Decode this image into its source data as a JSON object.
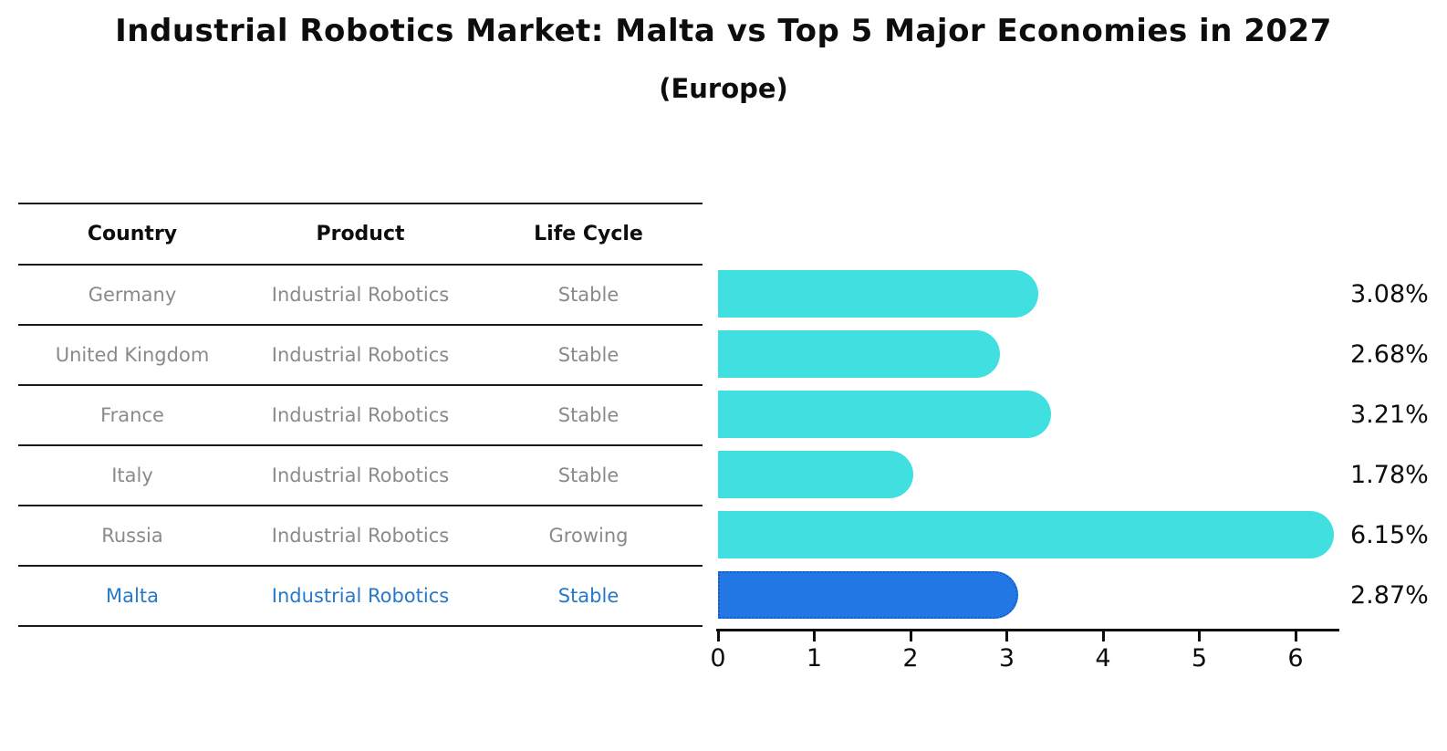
{
  "title": "Industrial Robotics Market: Malta vs Top 5 Major Economies in 2027",
  "subtitle": "(Europe)",
  "table": {
    "headers": [
      "Country",
      "Product",
      "Life Cycle"
    ],
    "rows": [
      {
        "country": "Germany",
        "product": "Industrial Robotics",
        "life_cycle": "Stable",
        "highlight": false
      },
      {
        "country": "United Kingdom",
        "product": "Industrial Robotics",
        "life_cycle": "Stable",
        "highlight": false
      },
      {
        "country": "France",
        "product": "Industrial Robotics",
        "life_cycle": "Stable",
        "highlight": false
      },
      {
        "country": "Italy",
        "product": "Industrial Robotics",
        "life_cycle": "Stable",
        "highlight": false
      },
      {
        "country": "Russia",
        "product": "Industrial Robotics",
        "life_cycle": "Growing",
        "highlight": false
      },
      {
        "country": "Malta",
        "product": "Industrial Robotics",
        "life_cycle": "Stable",
        "highlight": true
      }
    ]
  },
  "chart_data": {
    "type": "bar",
    "orientation": "horizontal",
    "categories": [
      "Germany",
      "United Kingdom",
      "France",
      "Italy",
      "Russia",
      "Malta"
    ],
    "values": [
      3.08,
      2.68,
      3.21,
      1.78,
      6.15,
      2.87
    ],
    "value_labels": [
      "3.08%",
      "2.68%",
      "3.21%",
      "1.78%",
      "6.15%",
      "2.87%"
    ],
    "title": "Industrial Robotics Market: Malta vs Top 5 Major Economies in 2027",
    "subtitle": "(Europe)",
    "xlabel": "",
    "ylabel": "",
    "xlim": [
      0,
      6.45
    ],
    "xticks": [
      "0",
      "1",
      "2",
      "3",
      "4",
      "5",
      "6"
    ],
    "grid": false,
    "legend": false,
    "highlight_index": 5
  },
  "colors": {
    "bar_default": "#40e0e0",
    "bar_highlight": "#2277e5",
    "bar_highlight_border": "#155fc9",
    "highlight_text": "#2679c9",
    "text_primary": "#0d0d0d",
    "text_muted": "#8a8a8a"
  }
}
